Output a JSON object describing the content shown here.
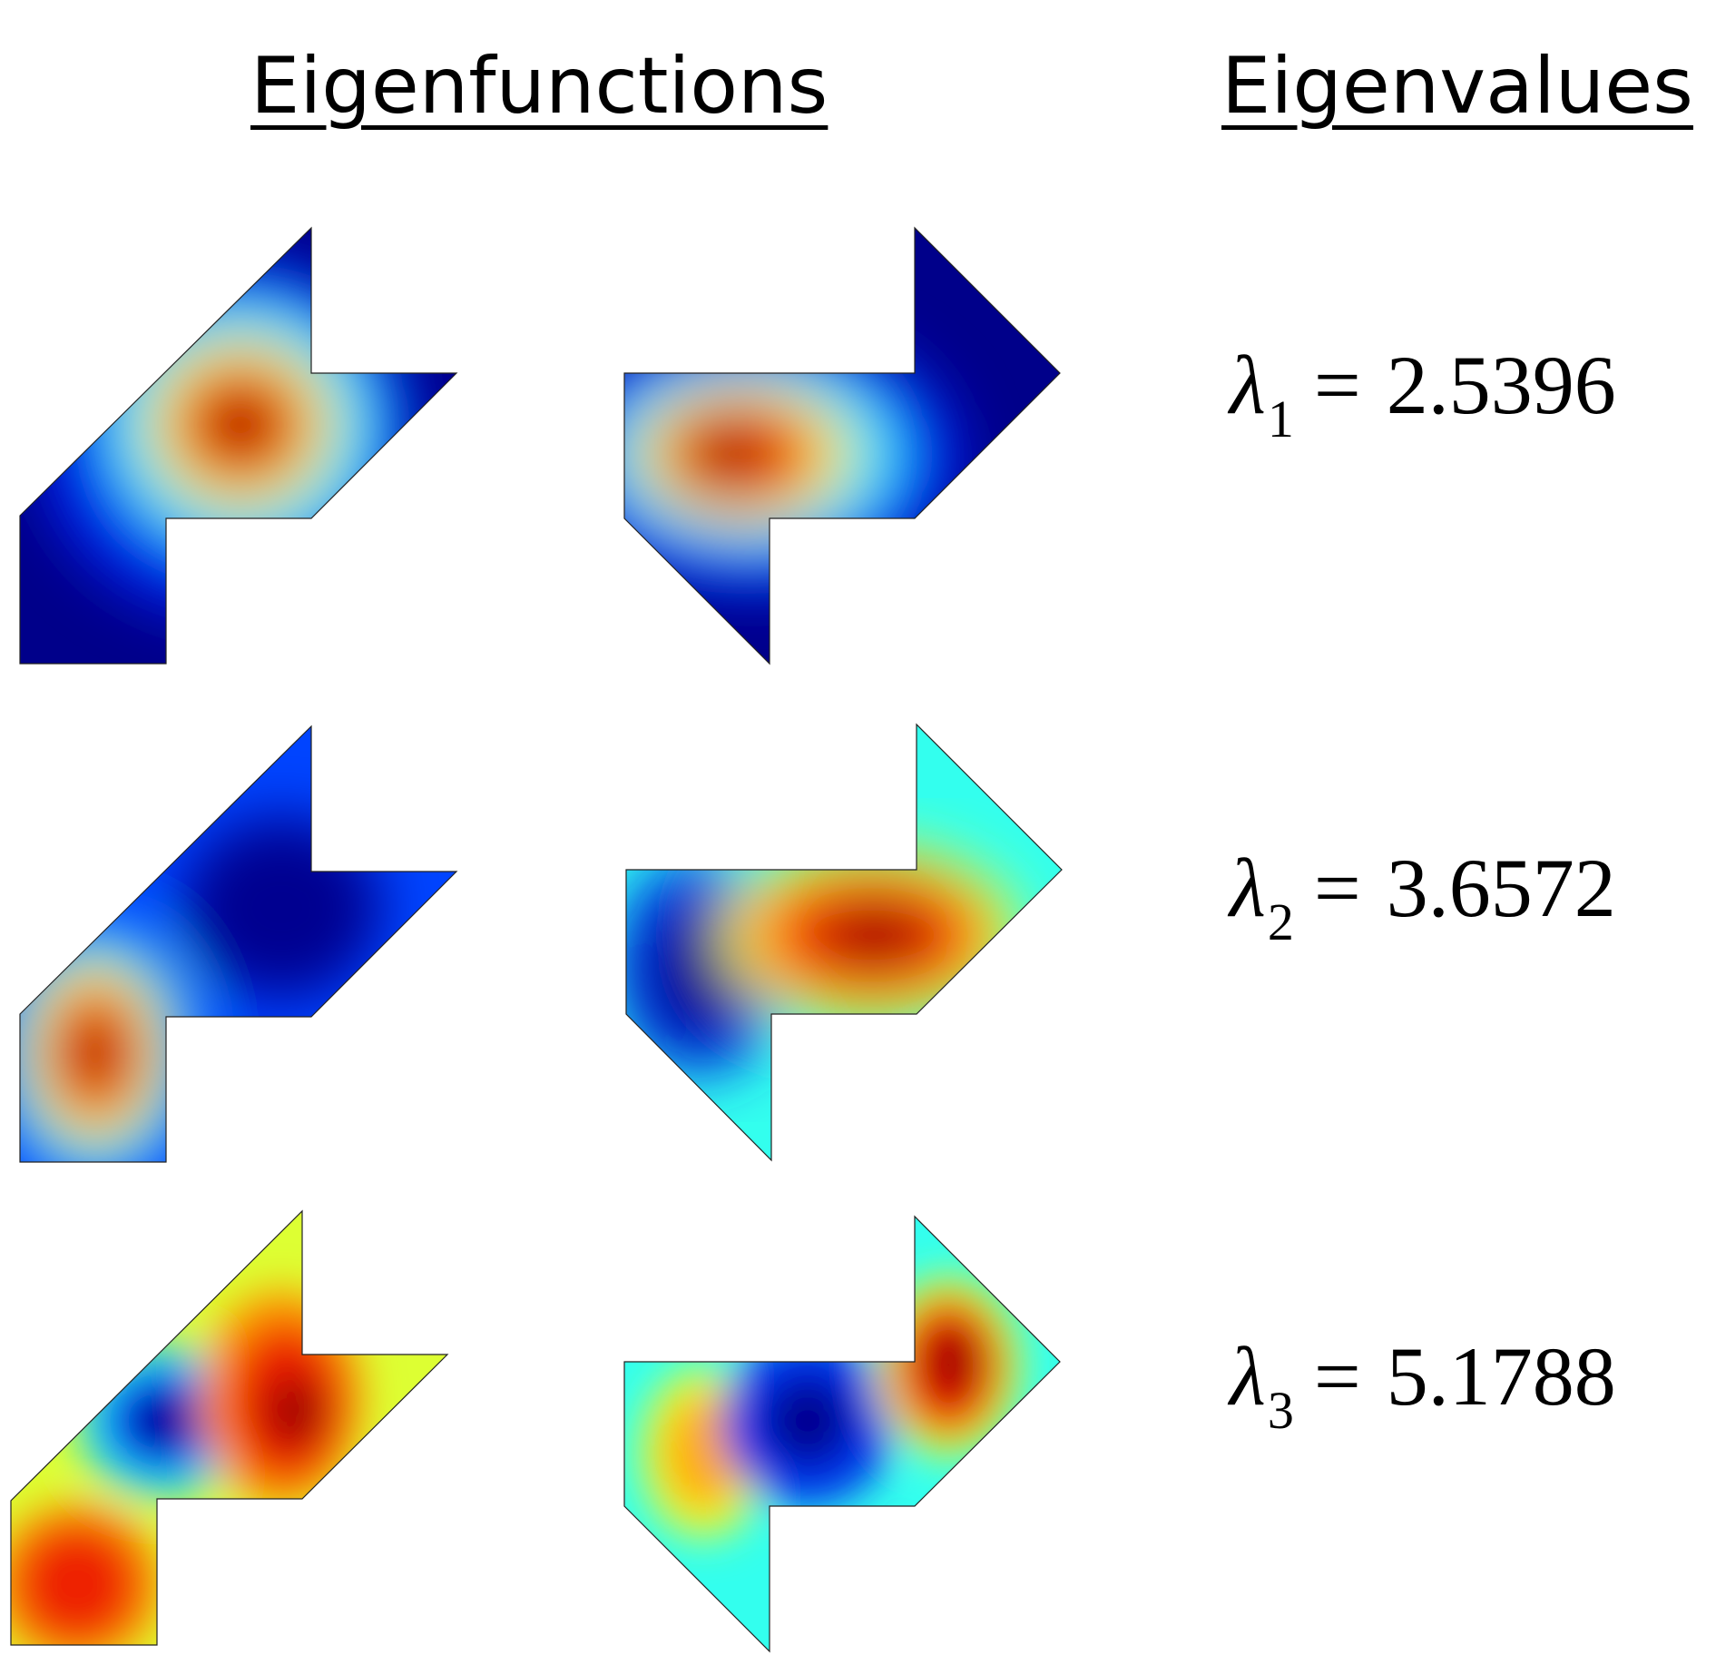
{
  "headings": {
    "eigenfunctions": "Eigenfunctions",
    "eigenvalues": "Eigenvalues"
  },
  "eigenvalues": [
    {
      "symbol": "λ",
      "index": "1",
      "operator": "=",
      "value": "2.5396"
    },
    {
      "symbol": "λ",
      "index": "2",
      "operator": "=",
      "value": "3.6572"
    },
    {
      "symbol": "λ",
      "index": "3",
      "operator": "=",
      "value": "5.1788"
    }
  ],
  "colormap": {
    "low": "#00007f",
    "blue": "#0033ff",
    "cyan": "#22ffee",
    "yellow": "#eeff33",
    "orange": "#ff8800",
    "red": "#ee1100",
    "high": "#7f0000"
  }
}
